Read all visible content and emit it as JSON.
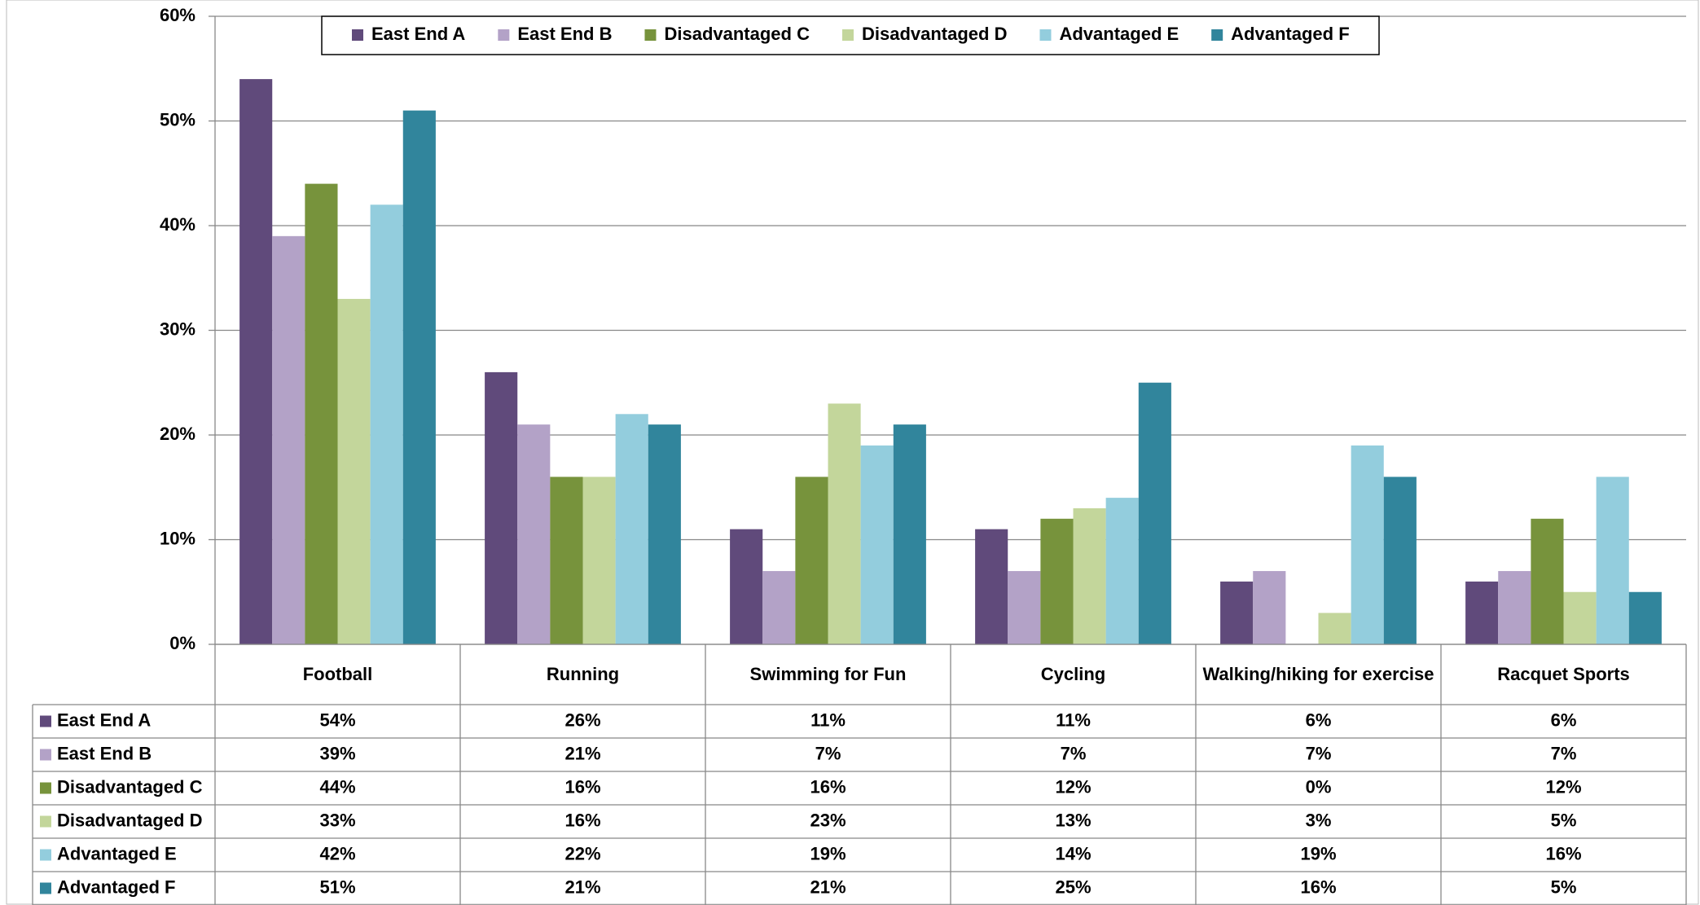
{
  "chart_data": {
    "type": "bar",
    "categories": [
      "Football",
      "Running",
      "Swimming for Fun",
      "Cycling",
      "Walking/hiking for exercise",
      "Racquet Sports"
    ],
    "series": [
      {
        "name": "East End A",
        "color": "#604a7b",
        "values": [
          54,
          26,
          11,
          11,
          6,
          6
        ],
        "value_labels": [
          "54%",
          "26%",
          "11%",
          "11%",
          "6%",
          "6%"
        ]
      },
      {
        "name": "East End B",
        "color": "#b3a2c7",
        "values": [
          39,
          21,
          7,
          7,
          7,
          7
        ],
        "value_labels": [
          "39%",
          "21%",
          "7%",
          "7%",
          "7%",
          "7%"
        ]
      },
      {
        "name": "Disadvantaged C",
        "color": "#77933c",
        "values": [
          44,
          16,
          16,
          12,
          0,
          12
        ],
        "value_labels": [
          "44%",
          "16%",
          "16%",
          "12%",
          "0%",
          "12%"
        ]
      },
      {
        "name": "Disadvantaged D",
        "color": "#c3d69b",
        "values": [
          33,
          16,
          23,
          13,
          3,
          5
        ],
        "value_labels": [
          "33%",
          "16%",
          "23%",
          "13%",
          "3%",
          "5%"
        ]
      },
      {
        "name": "Advantaged E",
        "color": "#93cddd",
        "values": [
          42,
          22,
          19,
          14,
          19,
          16
        ],
        "value_labels": [
          "42%",
          "22%",
          "19%",
          "14%",
          "19%",
          "16%"
        ]
      },
      {
        "name": "Advantaged F",
        "color": "#31859c",
        "values": [
          51,
          21,
          21,
          25,
          16,
          5
        ],
        "value_labels": [
          "51%",
          "21%",
          "21%",
          "25%",
          "16%",
          "5%"
        ]
      }
    ],
    "ylim": [
      0,
      60
    ],
    "yticks": [
      {
        "value": 0,
        "label": "0%"
      },
      {
        "value": 10,
        "label": "10%"
      },
      {
        "value": 20,
        "label": "20%"
      },
      {
        "value": 30,
        "label": "30%"
      },
      {
        "value": 40,
        "label": "40%"
      },
      {
        "value": 50,
        "label": "50%"
      },
      {
        "value": 60,
        "label": "60%"
      }
    ],
    "grid": true,
    "legend": "top"
  }
}
